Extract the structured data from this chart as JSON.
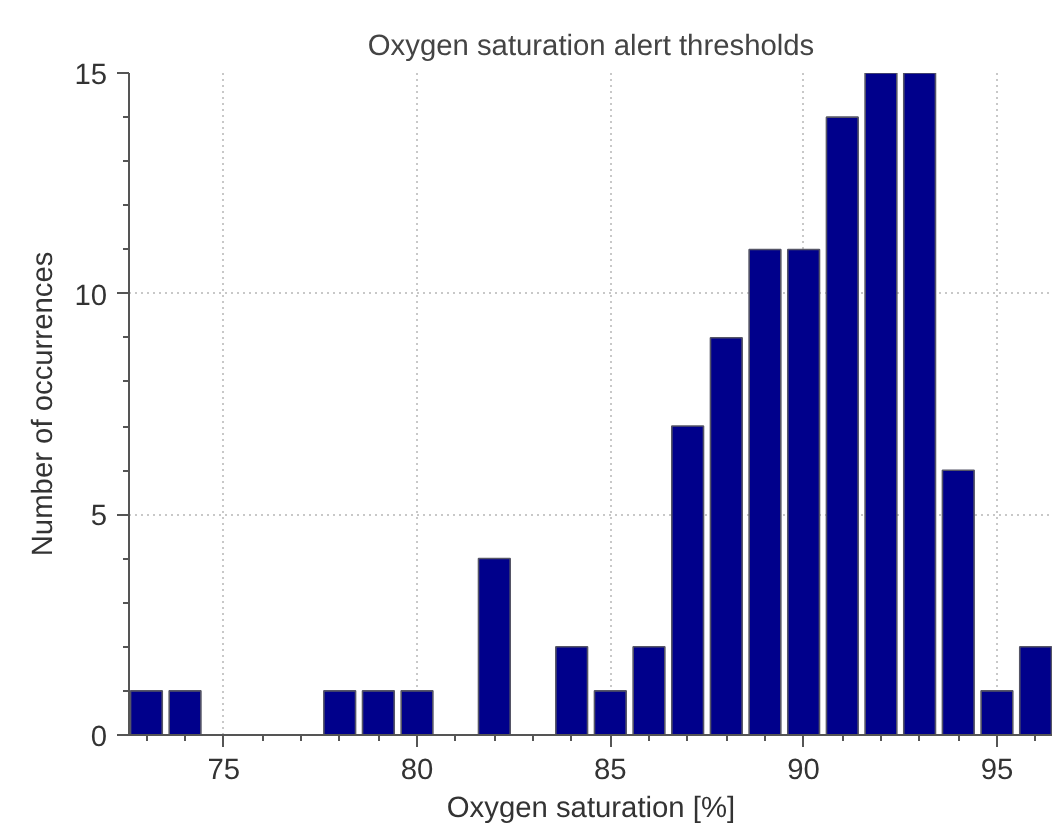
{
  "chart_data": {
    "type": "bar",
    "title": "Oxygen saturation alert thresholds",
    "xlabel": "Oxygen saturation [%]",
    "ylabel": "Number of occurrences",
    "x": [
      73,
      74,
      78,
      79,
      80,
      82,
      84,
      85,
      86,
      87,
      88,
      89,
      90,
      91,
      92,
      93,
      94,
      95,
      96
    ],
    "values": [
      1,
      1,
      1,
      1,
      1,
      4,
      2,
      1,
      2,
      7,
      9,
      11,
      11,
      14,
      15,
      15,
      6,
      1,
      2
    ],
    "color": "#00008b",
    "xlim": [
      72.55,
      96.45
    ],
    "ylim": [
      0,
      15
    ],
    "xticks": [
      75,
      80,
      85,
      90,
      95
    ],
    "yticks": [
      0,
      5,
      10,
      15
    ],
    "grid": true
  }
}
